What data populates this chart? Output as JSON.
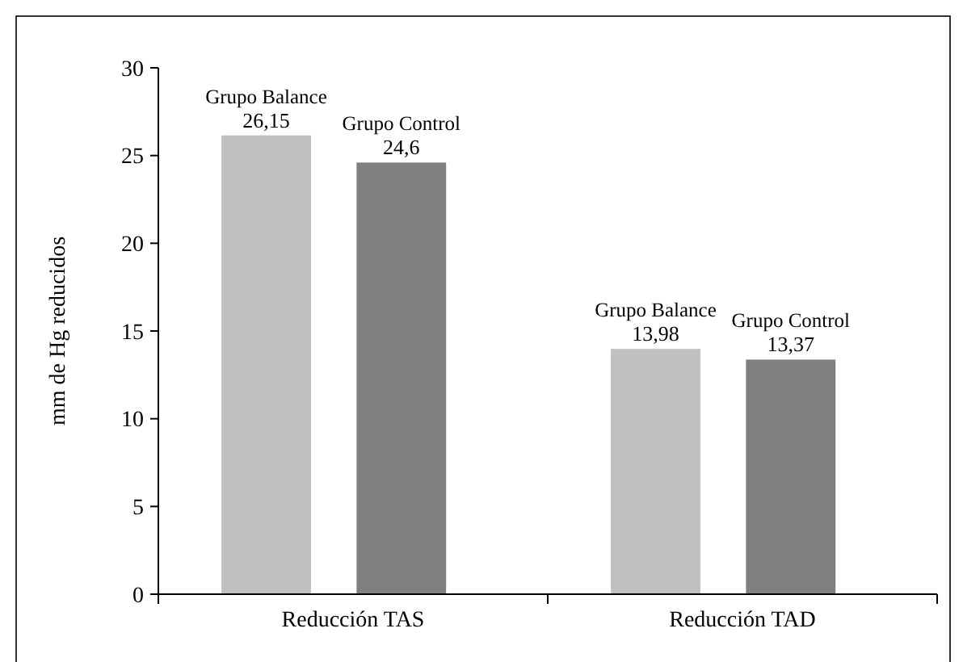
{
  "chart_data": {
    "type": "bar",
    "ylabel": "mm de Hg reducidos",
    "categories": [
      "Reducción TAS",
      "Reducción TAD"
    ],
    "ylim": [
      0,
      30
    ],
    "yticks": [
      0,
      5,
      10,
      15,
      20,
      25,
      30
    ],
    "grid": false,
    "series": [
      {
        "name": "Grupo Balance",
        "color": "#c0c0c0",
        "values": [
          26.15,
          13.98
        ],
        "value_labels": [
          "26,15",
          "13,98"
        ]
      },
      {
        "name": "Grupo Control",
        "color": "#7f7f7f",
        "values": [
          24.6,
          13.37
        ],
        "value_labels": [
          "24,6",
          "13,37"
        ]
      }
    ]
  }
}
